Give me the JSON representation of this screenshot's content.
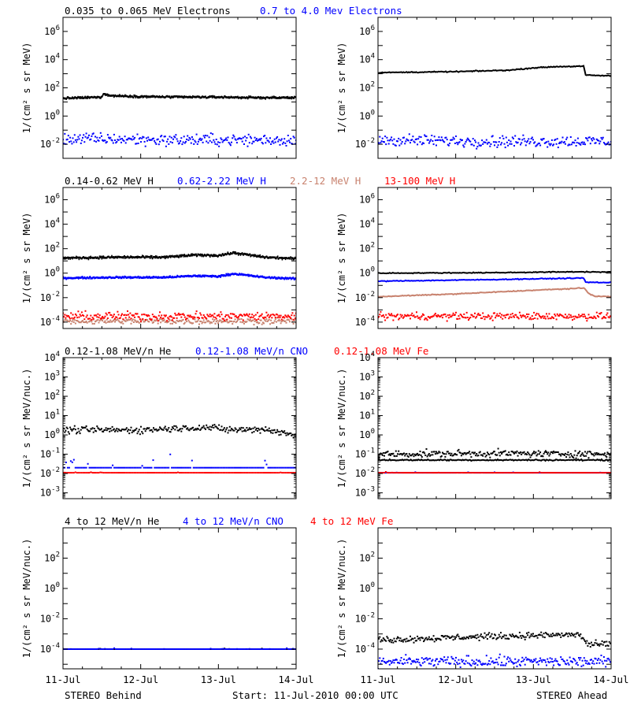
{
  "colors": {
    "black": "#000000",
    "blue": "#0000ff",
    "tan": "#c8826e",
    "red": "#ff0000"
  },
  "rows": [
    {
      "legend": [
        {
          "text": "0.035 to 0.065 MeV Electrons",
          "color": "#000000"
        },
        {
          "text": "0.7 to 4.0 Mev Electrons",
          "color": "#0000ff"
        }
      ],
      "ylabel": "1/(cm² s sr MeV)"
    },
    {
      "legend": [
        {
          "text": "0.14-0.62 MeV H",
          "color": "#000000"
        },
        {
          "text": "0.62-2.22 MeV H",
          "color": "#0000ff"
        },
        {
          "text": "2.2-12 MeV H",
          "color": "#c8826e"
        },
        {
          "text": "13-100 MeV H",
          "color": "#ff0000"
        }
      ],
      "ylabel": "1/(cm² s sr MeV)"
    },
    {
      "legend": [
        {
          "text": "0.12-1.08 MeV/n He",
          "color": "#000000"
        },
        {
          "text": "0.12-1.08 MeV/n CNO",
          "color": "#0000ff"
        },
        {
          "text": "0.12-1.08 MeV Fe",
          "color": "#ff0000"
        }
      ],
      "ylabel": "1/(cm² s sr MeV/nuc.)"
    },
    {
      "legend": [
        {
          "text": "4 to 12 MeV/n He",
          "color": "#000000"
        },
        {
          "text": "4 to 12 MeV/n CNO",
          "color": "#0000ff"
        },
        {
          "text": "4 to 12 MeV Fe",
          "color": "#ff0000"
        }
      ],
      "ylabel": "1/(cm² s sr MeV/nuc.)"
    }
  ],
  "x_ticks": [
    "11-Jul",
    "12-Jul",
    "13-Jul",
    "14-Jul"
  ],
  "footer": {
    "left": "STEREO Behind",
    "center": "Start: 11-Jul-2010 00:00 UTC",
    "right": "STEREO Ahead"
  },
  "chart_data": [
    {
      "panel": "behind-electrons",
      "type": "scatter",
      "yscale": "log",
      "ylim": [
        0.001,
        10000000
      ],
      "ylabel": "1/(cm² s sr MeV)",
      "y_ticks": [
        {
          "exp": -2
        },
        {
          "exp": 0
        },
        {
          "exp": 2
        },
        {
          "exp": 4
        },
        {
          "exp": 6
        }
      ],
      "x": [
        "11-Jul",
        "12-Jul",
        "13-Jul",
        "14-Jul"
      ],
      "series": [
        {
          "name": "0.035 to 0.065 MeV Electrons",
          "color": "#000000",
          "style": "band",
          "jitter": 0.06,
          "points": [
            [
              0.0,
              18
            ],
            [
              0.5,
              22
            ],
            [
              0.52,
              40
            ],
            [
              0.6,
              28
            ],
            [
              1.0,
              24
            ],
            [
              1.5,
              22
            ],
            [
              2.0,
              22
            ],
            [
              2.5,
              20
            ],
            [
              3.0,
              20
            ]
          ]
        },
        {
          "name": "0.7 to 4.0 Mev Electrons",
          "color": "#0000ff",
          "style": "scatter",
          "jitter": 0.35,
          "points": [
            [
              0.0,
              0.025
            ],
            [
              1.5,
              0.02
            ],
            [
              3.0,
              0.02
            ]
          ]
        }
      ]
    },
    {
      "panel": "ahead-electrons",
      "type": "scatter",
      "yscale": "log",
      "ylim": [
        0.001,
        10000000
      ],
      "ylabel": "1/(cm² s sr MeV)",
      "y_ticks": [
        {
          "exp": -2
        },
        {
          "exp": 0
        },
        {
          "exp": 2
        },
        {
          "exp": 4
        },
        {
          "exp": 6
        }
      ],
      "x": [
        "11-Jul",
        "12-Jul",
        "13-Jul",
        "14-Jul"
      ],
      "series": [
        {
          "name": "0.035 to 0.065 MeV Electrons",
          "color": "#000000",
          "style": "line",
          "points": [
            [
              0.0,
              1200
            ],
            [
              1.0,
              1400
            ],
            [
              1.7,
              1800
            ],
            [
              2.0,
              2600
            ],
            [
              2.3,
              3200
            ],
            [
              2.65,
              3400
            ],
            [
              2.67,
              800
            ],
            [
              3.0,
              700
            ]
          ]
        },
        {
          "name": "0.7 to 4.0 Mev Electrons",
          "color": "#0000ff",
          "style": "scatter",
          "jitter": 0.35,
          "points": [
            [
              0.0,
              0.02
            ],
            [
              1.5,
              0.016
            ],
            [
              3.0,
              0.016
            ]
          ]
        }
      ]
    },
    {
      "panel": "behind-protons",
      "type": "scatter",
      "yscale": "log",
      "ylim": [
        3e-05,
        10000000
      ],
      "ylabel": "1/(cm² s sr MeV)",
      "y_ticks": [
        {
          "exp": -4
        },
        {
          "exp": -2
        },
        {
          "exp": 0
        },
        {
          "exp": 2
        },
        {
          "exp": 4
        },
        {
          "exp": 6
        }
      ],
      "x": [
        "11-Jul",
        "12-Jul",
        "13-Jul",
        "14-Jul"
      ],
      "series": [
        {
          "name": "0.14-0.62 MeV H",
          "color": "#000000",
          "style": "band",
          "jitter": 0.08,
          "points": [
            [
              0.0,
              17
            ],
            [
              0.7,
              20
            ],
            [
              1.3,
              20
            ],
            [
              1.7,
              30
            ],
            [
              2.0,
              28
            ],
            [
              2.2,
              45
            ],
            [
              2.6,
              20
            ],
            [
              3.0,
              15
            ]
          ]
        },
        {
          "name": "0.62-2.22 MeV H",
          "color": "#0000ff",
          "style": "band",
          "jitter": 0.06,
          "points": [
            [
              0.0,
              0.4
            ],
            [
              0.7,
              0.45
            ],
            [
              1.3,
              0.45
            ],
            [
              1.7,
              0.6
            ],
            [
              2.0,
              0.55
            ],
            [
              2.2,
              0.9
            ],
            [
              2.6,
              0.45
            ],
            [
              3.0,
              0.35
            ]
          ]
        },
        {
          "name": "2.2-12 MeV H",
          "color": "#c8826e",
          "style": "scatter",
          "jitter": 0.2,
          "points": [
            [
              0.0,
              0.00012
            ],
            [
              3.0,
              0.00012
            ]
          ]
        },
        {
          "name": "13-100 MeV H",
          "color": "#ff0000",
          "style": "scatter",
          "jitter": 0.3,
          "points": [
            [
              0.0,
              0.0003
            ],
            [
              3.0,
              0.0003
            ]
          ]
        }
      ]
    },
    {
      "panel": "ahead-protons",
      "type": "scatter",
      "yscale": "log",
      "ylim": [
        3e-05,
        10000000
      ],
      "ylabel": "1/(cm² s sr MeV)",
      "y_ticks": [
        {
          "exp": -4
        },
        {
          "exp": -2
        },
        {
          "exp": 0
        },
        {
          "exp": 2
        },
        {
          "exp": 4
        },
        {
          "exp": 6
        }
      ],
      "x": [
        "11-Jul",
        "12-Jul",
        "13-Jul",
        "14-Jul"
      ],
      "series": [
        {
          "name": "0.14-0.62 MeV H",
          "color": "#000000",
          "style": "line",
          "points": [
            [
              0.0,
              1.0
            ],
            [
              1.5,
              1.1
            ],
            [
              2.6,
              1.3
            ],
            [
              3.0,
              1.2
            ]
          ]
        },
        {
          "name": "0.62-2.22 MeV H",
          "color": "#0000ff",
          "style": "line",
          "points": [
            [
              0.0,
              0.22
            ],
            [
              1.5,
              0.3
            ],
            [
              2.65,
              0.4
            ],
            [
              2.67,
              0.18
            ],
            [
              3.0,
              0.17
            ]
          ]
        },
        {
          "name": "2.2-12 MeV H",
          "color": "#c8826e",
          "style": "line",
          "points": [
            [
              0.0,
              0.012
            ],
            [
              1.0,
              0.02
            ],
            [
              2.0,
              0.04
            ],
            [
              2.65,
              0.06
            ],
            [
              2.72,
              0.02
            ],
            [
              2.8,
              0.013
            ],
            [
              3.0,
              0.012
            ]
          ]
        },
        {
          "name": "13-100 MeV H",
          "color": "#ff0000",
          "style": "scatter",
          "jitter": 0.25,
          "points": [
            [
              0.0,
              0.0003
            ],
            [
              3.0,
              0.0003
            ]
          ]
        }
      ]
    },
    {
      "panel": "behind-heavy-low",
      "type": "scatter",
      "yscale": "log",
      "ylim": [
        0.0005,
        10000
      ],
      "ylabel": "1/(cm² s sr MeV/nuc.)",
      "y_ticks": [
        {
          "exp": -3
        },
        {
          "exp": -2
        },
        {
          "exp": -1
        },
        {
          "exp": 0
        },
        {
          "exp": 1
        },
        {
          "exp": 2
        },
        {
          "exp": 3
        },
        {
          "exp": 4
        }
      ],
      "x": [
        "11-Jul",
        "12-Jul",
        "13-Jul",
        "14-Jul"
      ],
      "series": [
        {
          "name": "0.12-1.08 MeV/n He",
          "color": "#000000",
          "style": "scatter",
          "jitter": 0.15,
          "points": [
            [
              0.0,
              1.8
            ],
            [
              1.0,
              1.8
            ],
            [
              1.8,
              2.5
            ],
            [
              2.2,
              1.8
            ],
            [
              2.6,
              2.0
            ],
            [
              3.0,
              0.9
            ]
          ]
        },
        {
          "name": "0.12-1.08 MeV/n CNO",
          "color": "#0000ff",
          "style": "dashed",
          "jitter": 0.3,
          "points": [
            [
              0.0,
              0.02
            ],
            [
              3.0,
              0.02
            ]
          ]
        },
        {
          "name": "0.12-1.08 MeV Fe",
          "color": "#ff0000",
          "style": "dashed",
          "jitter": 0.02,
          "points": [
            [
              0.0,
              0.011
            ],
            [
              3.0,
              0.011
            ]
          ]
        }
      ]
    },
    {
      "panel": "ahead-heavy-low",
      "type": "scatter",
      "yscale": "log",
      "ylim": [
        0.0005,
        10000
      ],
      "ylabel": "1/(cm² s sr MeV/nuc.)",
      "y_ticks": [
        {
          "exp": -3
        },
        {
          "exp": -2
        },
        {
          "exp": -1
        },
        {
          "exp": 0
        },
        {
          "exp": 1
        },
        {
          "exp": 2
        },
        {
          "exp": 3
        },
        {
          "exp": 4
        }
      ],
      "x": [
        "11-Jul",
        "12-Jul",
        "13-Jul",
        "14-Jul"
      ],
      "series": [
        {
          "name": "0.12-1.08 MeV/n He",
          "color": "#000000",
          "style": "scatter",
          "jitter": 0.15,
          "points": [
            [
              0.0,
              0.1
            ],
            [
              1.5,
              0.11
            ],
            [
              3.0,
              0.1
            ]
          ]
        },
        {
          "name": "0.12-1.08 MeV/n He",
          "color": "#000000",
          "style": "line",
          "points": [
            [
              0.0,
              0.05
            ],
            [
              3.0,
              0.05
            ]
          ]
        },
        {
          "name": "0.12-1.08 MeV/n CNO",
          "color": "#0000ff",
          "style": "dashed",
          "jitter": 0.02,
          "points": [
            [
              0.0,
              0.011
            ],
            [
              3.0,
              0.011
            ]
          ]
        },
        {
          "name": "0.12-1.08 MeV Fe",
          "color": "#ff0000",
          "style": "dashed",
          "jitter": 0.02,
          "points": [
            [
              0.0,
              0.011
            ],
            [
              3.0,
              0.011
            ]
          ]
        }
      ]
    },
    {
      "panel": "behind-heavy-high",
      "type": "scatter",
      "yscale": "log",
      "ylim": [
        5e-06,
        10000
      ],
      "ylabel": "1/(cm² s sr MeV/nuc.)",
      "y_ticks": [
        {
          "exp": -4
        },
        {
          "exp": -2
        },
        {
          "exp": 0
        },
        {
          "exp": 2
        }
      ],
      "x": [
        "11-Jul",
        "12-Jul",
        "13-Jul",
        "14-Jul"
      ],
      "series": [
        {
          "name": "4 to 12 MeV/n He",
          "color": "#000000",
          "style": "dashed",
          "jitter": 0.02,
          "points": [
            [
              0.0,
              0.0001
            ],
            [
              3.0,
              0.0001
            ]
          ]
        },
        {
          "name": "4 to 12 MeV/n CNO",
          "color": "#0000ff",
          "style": "dashed",
          "jitter": 0.02,
          "points": [
            [
              0.0,
              0.0001
            ],
            [
              3.0,
              0.0001
            ]
          ]
        }
      ]
    },
    {
      "panel": "ahead-heavy-high",
      "type": "scatter",
      "yscale": "log",
      "ylim": [
        5e-06,
        10000
      ],
      "ylabel": "1/(cm² s sr MeV/nuc.)",
      "y_ticks": [
        {
          "exp": -4
        },
        {
          "exp": -2
        },
        {
          "exp": 0
        },
        {
          "exp": 2
        }
      ],
      "x": [
        "11-Jul",
        "12-Jul",
        "13-Jul",
        "14-Jul"
      ],
      "series": [
        {
          "name": "4 to 12 MeV/n He",
          "color": "#000000",
          "style": "scatter",
          "jitter": 0.18,
          "points": [
            [
              0.0,
              0.0004
            ],
            [
              1.5,
              0.0007
            ],
            [
              2.6,
              0.0009
            ],
            [
              2.7,
              0.0002
            ],
            [
              3.0,
              0.0002
            ]
          ]
        },
        {
          "name": "4 to 12 MeV/n CNO",
          "color": "#0000ff",
          "style": "scatter",
          "jitter": 0.3,
          "points": [
            [
              0.0,
              1.5e-05
            ],
            [
              3.0,
              1.5e-05
            ]
          ]
        }
      ]
    }
  ]
}
